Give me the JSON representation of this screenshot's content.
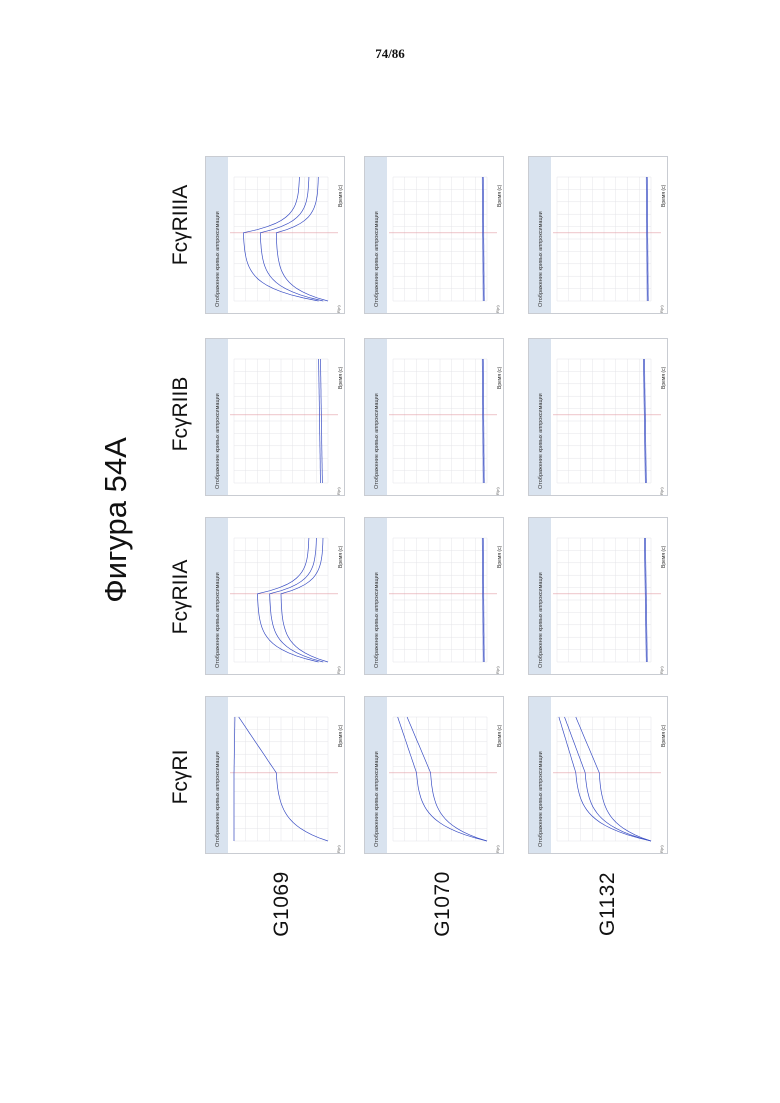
{
  "page": {
    "number": "74/86"
  },
  "figure": {
    "title": "Фигура 54А"
  },
  "receptors": [
    "FcγRI",
    "FcγRIIA",
    "FcγRIIB",
    "FcγRIIIA"
  ],
  "samples": [
    "G1069",
    "G1070",
    "G1132"
  ],
  "panel_text": {
    "title": "Отображение кривых аппроксимации",
    "x_label": "Время (с)",
    "y_label": "R(н)"
  },
  "colors": {
    "curve": "#3b4fc4",
    "marker_line": "#e3a0a8",
    "panel_header": "#d9e3ef",
    "grid": "#e4e4e8"
  },
  "chart_data": {
    "type": "line",
    "grid": true,
    "panels": [
      {
        "sample": "G1069",
        "receptor": "FcγRI",
        "curves": [
          [
            0.0,
            0.55,
            0.95
          ],
          [
            1.0,
            1.0,
            0.99
          ]
        ]
      },
      {
        "sample": "G1069",
        "receptor": "FcγRIIA",
        "curves": [
          [
            0.0,
            0.5,
            0.2,
            0.05
          ],
          [
            0.05,
            0.62,
            0.3,
            0.12
          ],
          [
            0.1,
            0.75,
            0.4,
            0.2
          ]
        ]
      },
      {
        "sample": "G1069",
        "receptor": "FcγRIIB",
        "curves": [
          [
            0.06,
            0.08
          ],
          [
            0.08,
            0.1
          ]
        ]
      },
      {
        "sample": "G1069",
        "receptor": "FcγRIIIA",
        "curves": [
          [
            0.0,
            0.55,
            0.3,
            0.1
          ],
          [
            0.05,
            0.72,
            0.42,
            0.2
          ],
          [
            0.1,
            0.9,
            0.55,
            0.3
          ]
        ]
      },
      {
        "sample": "G1070",
        "receptor": "FcγRI",
        "curves": [
          [
            0.0,
            0.6,
            0.85
          ],
          [
            0.0,
            0.75,
            0.95
          ]
        ]
      },
      {
        "sample": "G1070",
        "receptor": "FcγRIIA",
        "curves": [
          [
            0.03,
            0.04
          ],
          [
            0.04,
            0.05
          ]
        ]
      },
      {
        "sample": "G1070",
        "receptor": "FcγRIIB",
        "curves": [
          [
            0.03,
            0.04
          ],
          [
            0.04,
            0.05
          ]
        ]
      },
      {
        "sample": "G1070",
        "receptor": "FcγRIIIA",
        "curves": [
          [
            0.03,
            0.04
          ],
          [
            0.04,
            0.05
          ]
        ]
      },
      {
        "sample": "G1132",
        "receptor": "FcγRI",
        "curves": [
          [
            0.0,
            0.55,
            0.8
          ],
          [
            0.0,
            0.7,
            0.92
          ],
          [
            0.0,
            0.8,
            0.98
          ]
        ]
      },
      {
        "sample": "G1132",
        "receptor": "FcγRIIA",
        "curves": [
          [
            0.04,
            0.06
          ],
          [
            0.05,
            0.07
          ]
        ]
      },
      {
        "sample": "G1132",
        "receptor": "FcγRIIB",
        "curves": [
          [
            0.05,
            0.07
          ],
          [
            0.06,
            0.08
          ]
        ]
      },
      {
        "sample": "G1132",
        "receptor": "FcγRIIIA",
        "curves": [
          [
            0.03,
            0.04
          ],
          [
            0.04,
            0.05
          ]
        ]
      }
    ]
  }
}
